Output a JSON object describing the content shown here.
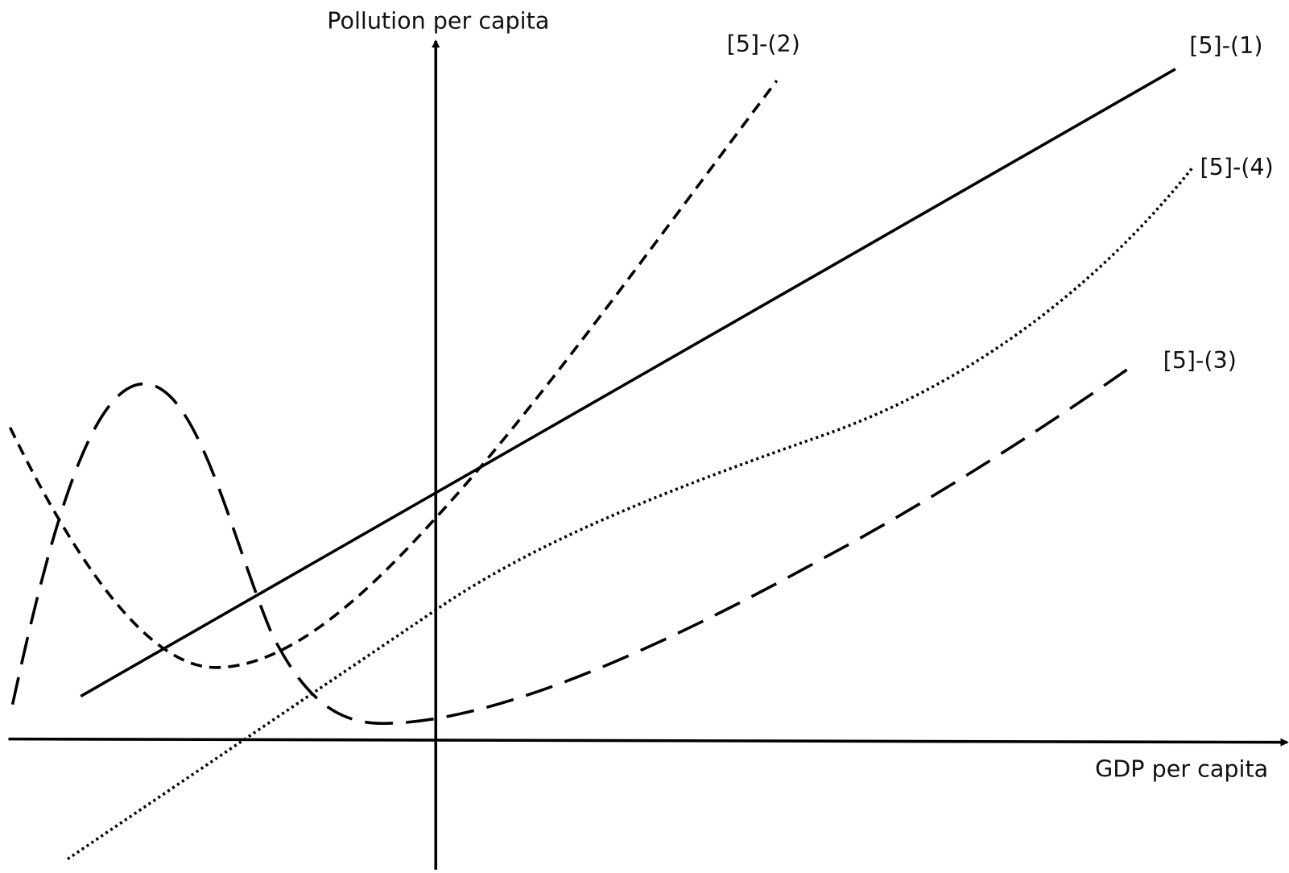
{
  "axes": {
    "y_label": "Pollution per capita",
    "x_label": "GDP per capita"
  },
  "curves": [
    {
      "label": "[5]-(1)"
    },
    {
      "label": "[5]-(2)"
    },
    {
      "label": "[5]-(3)"
    },
    {
      "label": "[5]-(4)"
    }
  ]
}
